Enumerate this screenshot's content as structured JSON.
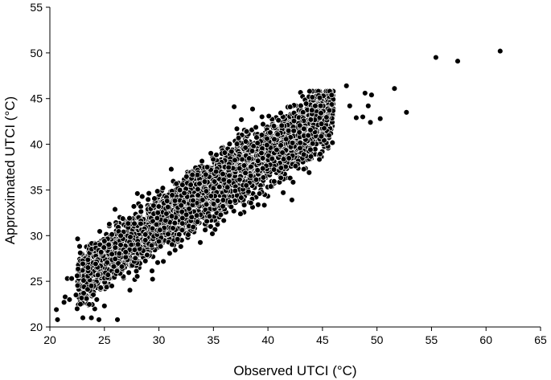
{
  "chart_data": {
    "type": "scatter",
    "title": "",
    "xlabel": "Observed UTCI  (°C)",
    "ylabel": "Approximated UTCI (°C)",
    "xlim": [
      20,
      65
    ],
    "ylim": [
      20,
      55
    ],
    "xticks": [
      "20",
      "25",
      "30",
      "35",
      "40",
      "45",
      "50",
      "55",
      "60",
      "65"
    ],
    "yticks": [
      "20",
      "25",
      "30",
      "35",
      "40",
      "45",
      "50",
      "55"
    ],
    "grid": false,
    "legend": "none",
    "marker_color": "#000000",
    "marker_edge": "#ffffff",
    "main_cloud": {
      "x_range": [
        21,
        47
      ],
      "trend": "y ≈ 0.78x + 7.7",
      "approx_spread": 1.6,
      "approx_point_count": 4000
    },
    "points": [
      [
        20.7,
        20.8
      ],
      [
        20.6,
        21.9
      ],
      [
        21.3,
        22.7
      ],
      [
        21.4,
        23.3
      ],
      [
        21.6,
        25.3
      ],
      [
        21.8,
        23.0
      ],
      [
        22.0,
        25.3
      ],
      [
        22.4,
        23.5
      ],
      [
        22.5,
        25.6
      ],
      [
        22.5,
        22.0
      ],
      [
        22.8,
        22.5
      ],
      [
        23.1,
        23.7
      ],
      [
        23.5,
        26.5
      ],
      [
        23.8,
        24.5
      ],
      [
        24.2,
        26.9
      ],
      [
        24.3,
        23.0
      ],
      [
        24.5,
        20.8
      ],
      [
        24.7,
        28.2
      ],
      [
        25.0,
        29.4
      ],
      [
        25.0,
        22.3
      ],
      [
        25.4,
        29.0
      ],
      [
        26.2,
        20.8
      ],
      [
        26.5,
        30.0
      ],
      [
        27.3,
        31.9
      ],
      [
        34.9,
        30.2
      ],
      [
        36.9,
        44.1
      ],
      [
        41.4,
        34.7
      ],
      [
        42.2,
        33.9
      ],
      [
        47.2,
        46.4
      ],
      [
        47.5,
        44.2
      ],
      [
        48.1,
        42.9
      ],
      [
        48.7,
        43.0
      ],
      [
        48.9,
        45.6
      ],
      [
        49.2,
        44.2
      ],
      [
        49.4,
        42.4
      ],
      [
        49.5,
        45.4
      ],
      [
        50.3,
        42.8
      ],
      [
        51.6,
        46.1
      ],
      [
        52.7,
        43.5
      ],
      [
        55.4,
        49.5
      ],
      [
        57.4,
        49.1
      ],
      [
        61.3,
        50.2
      ]
    ]
  }
}
